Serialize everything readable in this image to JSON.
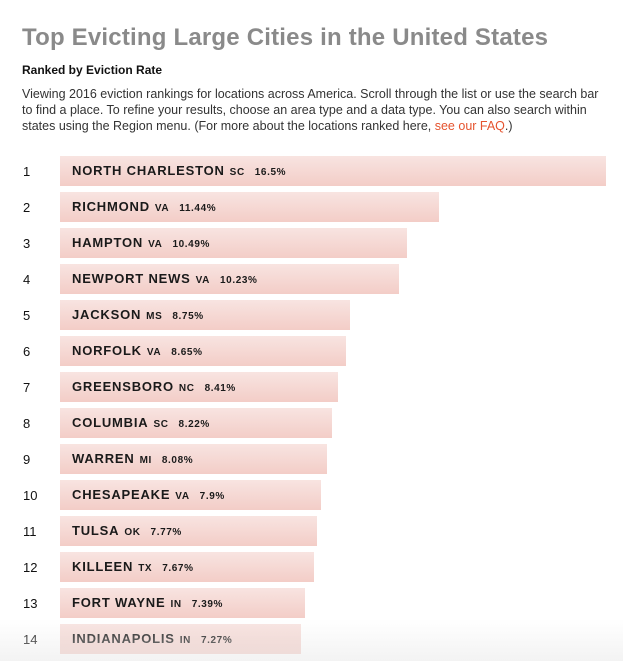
{
  "header": {
    "title": "Top Evicting Large Cities in the United States",
    "subtitle": "Ranked by Eviction Rate",
    "description": "Viewing 2016 eviction rankings for locations across America. Scroll through the list or use the search bar to find a place. To refine your results, choose an area type and a data type. You can also search within states using the Region menu. (For more about the locations ranked here, ",
    "faq_link": "see our FAQ",
    "description_end": ".)"
  },
  "colors": {
    "bar_top": "#f8e4e1",
    "bar_bottom": "#f3cdc7",
    "title": "#8a8a8a",
    "link": "#e5532e"
  },
  "chart_data": {
    "type": "bar",
    "orientation": "horizontal",
    "title": "Top Evicting Large Cities in the United States",
    "subtitle": "Ranked by Eviction Rate",
    "xlim": [
      0,
      16.5
    ],
    "items": [
      {
        "rank": "1",
        "city": "NORTH CHARLESTON",
        "state": "SC",
        "value": 16.5,
        "label": "16.5%"
      },
      {
        "rank": "2",
        "city": "RICHMOND",
        "state": "VA",
        "value": 11.44,
        "label": "11.44%"
      },
      {
        "rank": "3",
        "city": "HAMPTON",
        "state": "VA",
        "value": 10.49,
        "label": "10.49%"
      },
      {
        "rank": "4",
        "city": "NEWPORT NEWS",
        "state": "VA",
        "value": 10.23,
        "label": "10.23%"
      },
      {
        "rank": "5",
        "city": "JACKSON",
        "state": "MS",
        "value": 8.75,
        "label": "8.75%"
      },
      {
        "rank": "6",
        "city": "NORFOLK",
        "state": "VA",
        "value": 8.65,
        "label": "8.65%"
      },
      {
        "rank": "7",
        "city": "GREENSBORO",
        "state": "NC",
        "value": 8.41,
        "label": "8.41%"
      },
      {
        "rank": "8",
        "city": "COLUMBIA",
        "state": "SC",
        "value": 8.22,
        "label": "8.22%"
      },
      {
        "rank": "9",
        "city": "WARREN",
        "state": "MI",
        "value": 8.08,
        "label": "8.08%"
      },
      {
        "rank": "10",
        "city": "CHESAPEAKE",
        "state": "VA",
        "value": 7.9,
        "label": "7.9%"
      },
      {
        "rank": "11",
        "city": "TULSA",
        "state": "OK",
        "value": 7.77,
        "label": "7.77%"
      },
      {
        "rank": "12",
        "city": "KILLEEN",
        "state": "TX",
        "value": 7.67,
        "label": "7.67%"
      },
      {
        "rank": "13",
        "city": "FORT WAYNE",
        "state": "IN",
        "value": 7.39,
        "label": "7.39%"
      },
      {
        "rank": "14",
        "city": "INDIANAPOLIS",
        "state": "IN",
        "value": 7.27,
        "label": "7.27%"
      }
    ]
  }
}
